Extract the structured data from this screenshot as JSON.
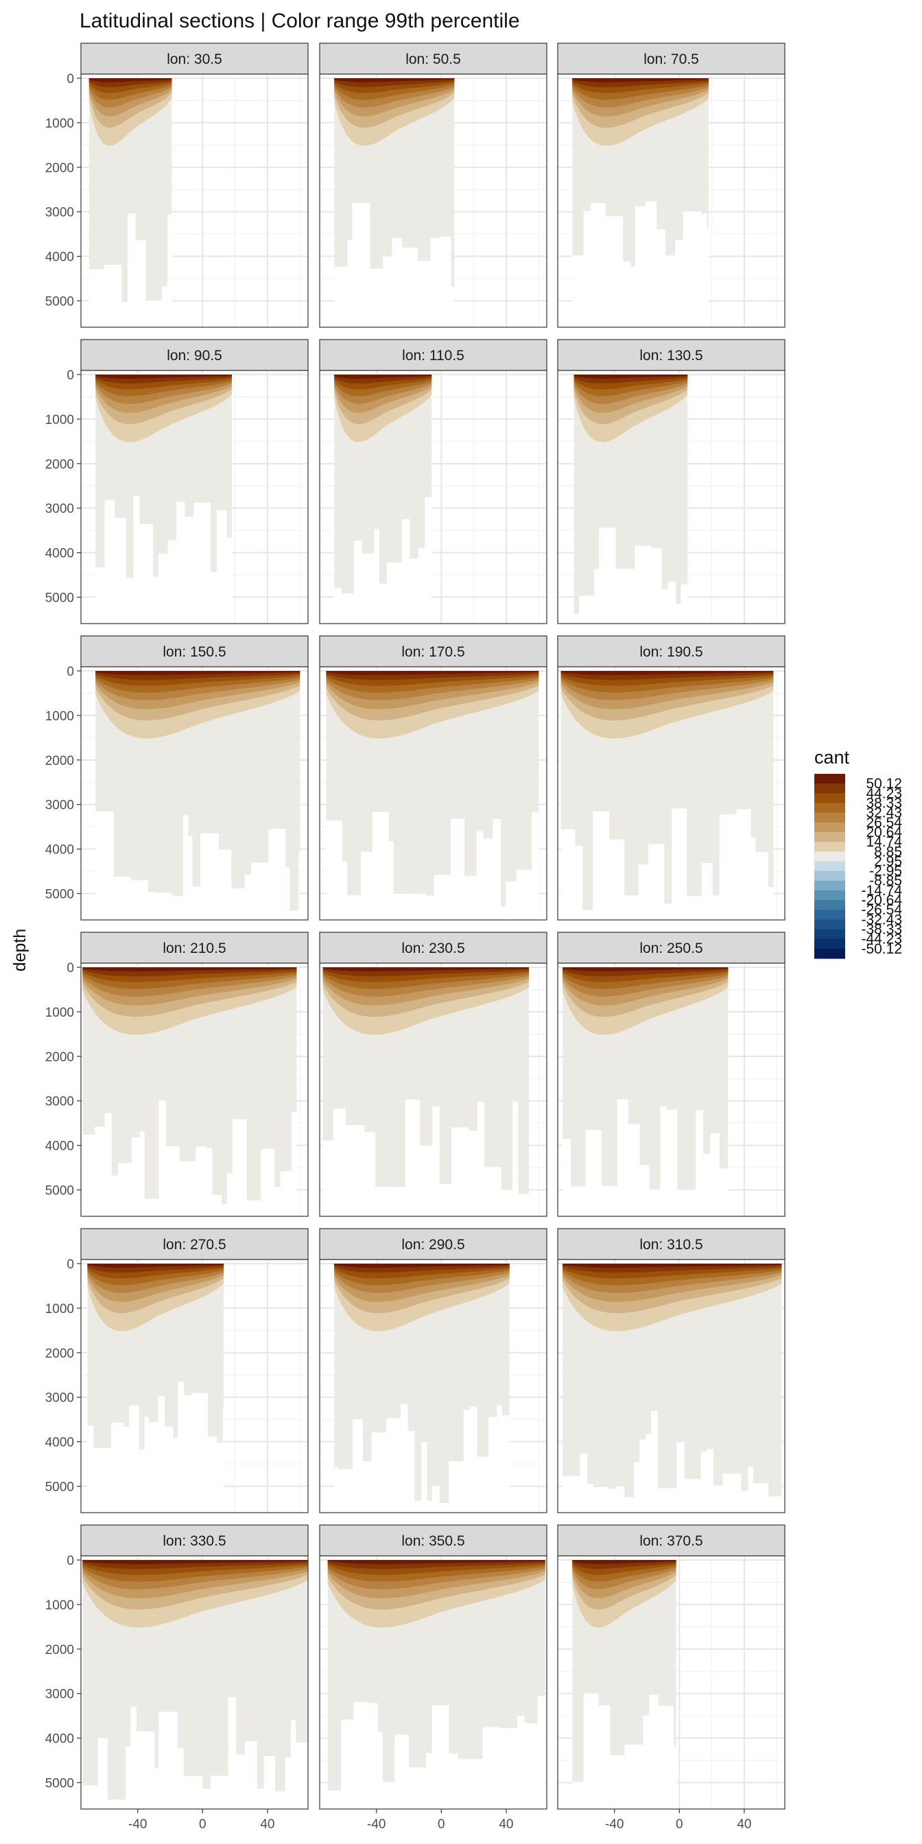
{
  "chart_data": {
    "type": "heatmap",
    "subtype": "faceted filled-contour ocean sections",
    "title": "Latitudinal sections | Color range 99th percentile",
    "xlabel": "",
    "ylabel": "depth",
    "x_ticks": [
      "-40",
      "0",
      "40"
    ],
    "y_ticks": [
      "0",
      "1000",
      "2000",
      "3000",
      "4000",
      "5000"
    ],
    "xlim": [
      -75,
      65
    ],
    "ylim": [
      5500,
      0
    ],
    "legend": {
      "title": "cant",
      "position": "right",
      "breaks": [
        "50.12",
        "44.23",
        "38.33",
        "32.43",
        "26.54",
        "20.64",
        "14.74",
        "8.85",
        "2.95",
        "-2.95",
        "-8.85",
        "-14.74",
        "-20.64",
        "-26.54",
        "-32.43",
        "-38.33",
        "-44.23",
        "-50.12"
      ],
      "colors": [
        "#6b1a04",
        "#843603",
        "#99500a",
        "#a96a1f",
        "#b78141",
        "#c49a60",
        "#d2b386",
        "#e2cfae",
        "#eceae4",
        "#c7dbe8",
        "#a4c6da",
        "#7cacc5",
        "#5a92b4",
        "#3f7aa5",
        "#2b6698",
        "#1d538a",
        "#10417a",
        "#08306b",
        "#051b56"
      ]
    },
    "facets": [
      {
        "label": "lon: 30.5",
        "lat_range": [
          -70,
          -19
        ],
        "max_depth": 5300
      },
      {
        "label": "lon: 50.5",
        "lat_range": [
          -66,
          8
        ],
        "max_depth": 5000
      },
      {
        "label": "lon: 70.5",
        "lat_range": [
          -66,
          18
        ],
        "max_depth": 4500
      },
      {
        "label": "lon: 90.5",
        "lat_range": [
          -66,
          18
        ],
        "max_depth": 4700
      },
      {
        "label": "lon: 110.5",
        "lat_range": [
          -66,
          -6
        ],
        "max_depth": 5000
      },
      {
        "label": "lon: 130.5",
        "lat_range": [
          -65,
          5
        ],
        "max_depth": 5400
      },
      {
        "label": "lon: 150.5",
        "lat_range": [
          -66,
          60
        ],
        "max_depth": 5400
      },
      {
        "label": "lon: 170.5",
        "lat_range": [
          -71,
          60
        ],
        "max_depth": 5400
      },
      {
        "label": "lon: 190.5",
        "lat_range": [
          -73,
          58
        ],
        "max_depth": 5400
      },
      {
        "label": "lon: 210.5",
        "lat_range": [
          -74,
          58
        ],
        "max_depth": 5400
      },
      {
        "label": "lon: 230.5",
        "lat_range": [
          -73,
          54
        ],
        "max_depth": 5300
      },
      {
        "label": "lon: 250.5",
        "lat_range": [
          -72,
          30
        ],
        "max_depth": 5000
      },
      {
        "label": "lon: 270.5",
        "lat_range": [
          -71,
          13
        ],
        "max_depth": 4500
      },
      {
        "label": "lon: 290.5",
        "lat_range": [
          -66,
          42
        ],
        "max_depth": 5400
      },
      {
        "label": "lon: 310.5",
        "lat_range": [
          -72,
          63
        ],
        "max_depth": 5400
      },
      {
        "label": "lon: 330.5",
        "lat_range": [
          -74,
          65
        ],
        "max_depth": 5500
      },
      {
        "label": "lon: 350.5",
        "lat_range": [
          -70,
          64
        ],
        "max_depth": 5400
      },
      {
        "label": "lon: 370.5",
        "lat_range": [
          -66,
          -2
        ],
        "max_depth": 5000
      }
    ]
  }
}
